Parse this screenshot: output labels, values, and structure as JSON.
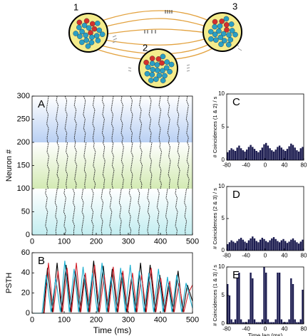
{
  "diagram": {
    "labels": [
      "1",
      "2",
      "3"
    ]
  },
  "chart_data": [
    {
      "type": "raster",
      "panel": "A",
      "ylabel": "Neuron #",
      "xlim": [
        0,
        500
      ],
      "xticks": [
        0,
        100,
        200,
        300,
        400,
        500
      ],
      "ylim": [
        0,
        300
      ],
      "yticks": [
        0,
        50,
        100,
        150,
        200,
        250,
        300
      ],
      "groups": [
        {
          "range": [
            200,
            300
          ],
          "color": "#b9d0f3",
          "times": [
            48,
            78,
            106,
            135,
            163,
            192,
            222,
            250,
            280,
            310,
            338,
            368,
            398,
            426,
            455,
            484
          ]
        },
        {
          "range": [
            100,
            200
          ],
          "color": "#d3eab3",
          "times": [
            50,
            80,
            108,
            136,
            165,
            194,
            224,
            252,
            282,
            311,
            340,
            370,
            400,
            428,
            457,
            486
          ]
        },
        {
          "range": [
            0,
            100
          ],
          "color": "#c3edf0",
          "times": [
            45,
            75,
            102,
            130,
            158,
            188,
            218,
            245,
            275,
            305,
            333,
            363,
            393,
            420,
            450,
            478
          ]
        }
      ]
    },
    {
      "type": "line",
      "panel": "B",
      "ylabel": "PSTH",
      "xlabel": "Time (ms)",
      "xlim": [
        0,
        500
      ],
      "xticks": [
        0,
        100,
        200,
        300,
        400,
        500
      ],
      "ylim": [
        0,
        60
      ],
      "yticks": [
        0,
        20,
        40,
        60
      ],
      "series": [
        {
          "color": "#000000",
          "x": [
            0,
            35,
            48,
            63,
            78,
            92,
            106,
            120,
            135,
            149,
            163,
            177,
            192,
            207,
            222,
            236,
            250,
            265,
            280,
            295,
            310,
            324,
            338,
            353,
            368,
            383,
            398,
            412,
            426,
            440,
            455,
            470,
            484,
            500
          ],
          "values": [
            0,
            0,
            45,
            1,
            50,
            1,
            48,
            1,
            42,
            1,
            38,
            1,
            52,
            1,
            47,
            1,
            44,
            1,
            40,
            1,
            35,
            1,
            50,
            1,
            48,
            1,
            38,
            1,
            30,
            1,
            42,
            1,
            28,
            12
          ]
        },
        {
          "color": "#d0202a",
          "x": [
            0,
            38,
            51,
            66,
            81,
            95,
            109,
            123,
            138,
            152,
            166,
            180,
            195,
            210,
            225,
            239,
            253,
            268,
            283,
            298,
            313,
            327,
            341,
            356,
            371,
            386,
            401,
            415,
            429,
            443,
            458,
            473,
            487,
            500
          ],
          "values": [
            0,
            0,
            50,
            1,
            42,
            1,
            45,
            1,
            50,
            1,
            40,
            1,
            48,
            1,
            38,
            1,
            46,
            1,
            42,
            1,
            40,
            1,
            38,
            1,
            45,
            1,
            35,
            1,
            32,
            1,
            30,
            1,
            20,
            28
          ]
        },
        {
          "color": "#1aaed0",
          "x": [
            0,
            31,
            44,
            59,
            74,
            88,
            102,
            116,
            131,
            145,
            159,
            173,
            188,
            203,
            218,
            232,
            246,
            261,
            276,
            291,
            306,
            320,
            334,
            349,
            364,
            379,
            394,
            408,
            422,
            436,
            451,
            466,
            480,
            500
          ],
          "values": [
            0,
            0,
            38,
            1,
            35,
            1,
            52,
            1,
            44,
            1,
            46,
            1,
            40,
            1,
            50,
            1,
            36,
            1,
            45,
            1,
            48,
            1,
            42,
            1,
            40,
            1,
            44,
            1,
            36,
            1,
            38,
            1,
            30,
            5
          ]
        }
      ]
    },
    {
      "type": "histogram",
      "panel": "C",
      "ylabel": "# Coincidences (1 & 2) / s",
      "color": "#1c1c50",
      "xlim": [
        -80,
        80
      ],
      "xticks": [
        -80,
        -40,
        0,
        40,
        80
      ],
      "ylim": [
        0,
        10
      ],
      "yticks": [
        0,
        5,
        10
      ],
      "bins": [
        -80,
        -76,
        -72,
        -68,
        -64,
        -60,
        -56,
        -52,
        -48,
        -44,
        -40,
        -36,
        -32,
        -28,
        -24,
        -20,
        -16,
        -12,
        -8,
        -4,
        0,
        4,
        8,
        12,
        16,
        20,
        24,
        28,
        32,
        36,
        40,
        44,
        48,
        52,
        56,
        60,
        64,
        68,
        72,
        76,
        80
      ],
      "values": [
        1.2,
        1.5,
        1.8,
        1.6,
        1.4,
        1.9,
        2.2,
        1.8,
        1.5,
        1.3,
        1.6,
        2.0,
        2.3,
        2.0,
        1.7,
        1.4,
        1.2,
        1.5,
        1.9,
        2.4,
        2.6,
        2.2,
        1.8,
        1.5,
        1.3,
        1.6,
        2.0,
        2.2,
        1.9,
        1.6,
        1.4,
        1.7,
        2.1,
        2.5,
        2.3,
        1.9,
        1.5,
        1.3,
        1.8,
        2.0
      ]
    },
    {
      "type": "histogram",
      "panel": "D",
      "ylabel": "# Coincidences (2 & 3) / s",
      "color": "#1c1c50",
      "xlim": [
        -80,
        80
      ],
      "xticks": [
        -80,
        -40,
        0,
        40,
        80
      ],
      "ylim": [
        0,
        10
      ],
      "yticks": [
        0,
        5,
        10
      ],
      "bins": [
        -80,
        -76,
        -72,
        -68,
        -64,
        -60,
        -56,
        -52,
        -48,
        -44,
        -40,
        -36,
        -32,
        -28,
        -24,
        -20,
        -16,
        -12,
        -8,
        -4,
        0,
        4,
        8,
        12,
        16,
        20,
        24,
        28,
        32,
        36,
        40,
        44,
        48,
        52,
        56,
        60,
        64,
        68,
        72,
        76,
        80
      ],
      "values": [
        1.0,
        1.3,
        1.6,
        1.4,
        1.2,
        1.5,
        1.8,
        2.0,
        1.7,
        1.4,
        1.2,
        1.6,
        1.9,
        2.2,
        1.9,
        1.5,
        1.3,
        1.7,
        2.0,
        1.8,
        1.5,
        1.3,
        1.6,
        1.9,
        2.1,
        1.8,
        1.5,
        1.3,
        1.6,
        1.8,
        1.5,
        1.2,
        1.4,
        1.7,
        1.9,
        1.6,
        1.3,
        1.1,
        1.4,
        1.7
      ]
    },
    {
      "type": "histogram",
      "panel": "E",
      "ylabel": "# Coincidences (1 & 3) / s",
      "xlabel": "Time lag (ms)",
      "color": "#1c1c50",
      "xlim": [
        -80,
        80
      ],
      "xticks": [
        -80,
        -40,
        0,
        40,
        80
      ],
      "ylim": [
        0,
        10
      ],
      "yticks": [
        0,
        5,
        10
      ],
      "bins": [
        -80,
        -76,
        -72,
        -68,
        -64,
        -60,
        -56,
        -52,
        -48,
        -44,
        -40,
        -36,
        -32,
        -28,
        -24,
        -20,
        -16,
        -12,
        -8,
        -4,
        0,
        4,
        8,
        12,
        16,
        20,
        24,
        28,
        32,
        36,
        40,
        44,
        48,
        52,
        56,
        60,
        64,
        68,
        72,
        76,
        80
      ],
      "values": [
        7,
        5,
        0.8,
        0.3,
        0.8,
        8,
        9,
        0.8,
        0.3,
        0.3,
        0.3,
        0.8,
        9,
        8,
        0.8,
        0.3,
        0.3,
        0.3,
        0.8,
        10,
        9,
        0.8,
        0.3,
        0.3,
        0.3,
        0.8,
        9,
        9,
        0.8,
        0.3,
        0.3,
        0.3,
        0.8,
        8,
        7,
        0.8,
        0.3,
        0.3,
        0.8,
        6
      ]
    }
  ]
}
